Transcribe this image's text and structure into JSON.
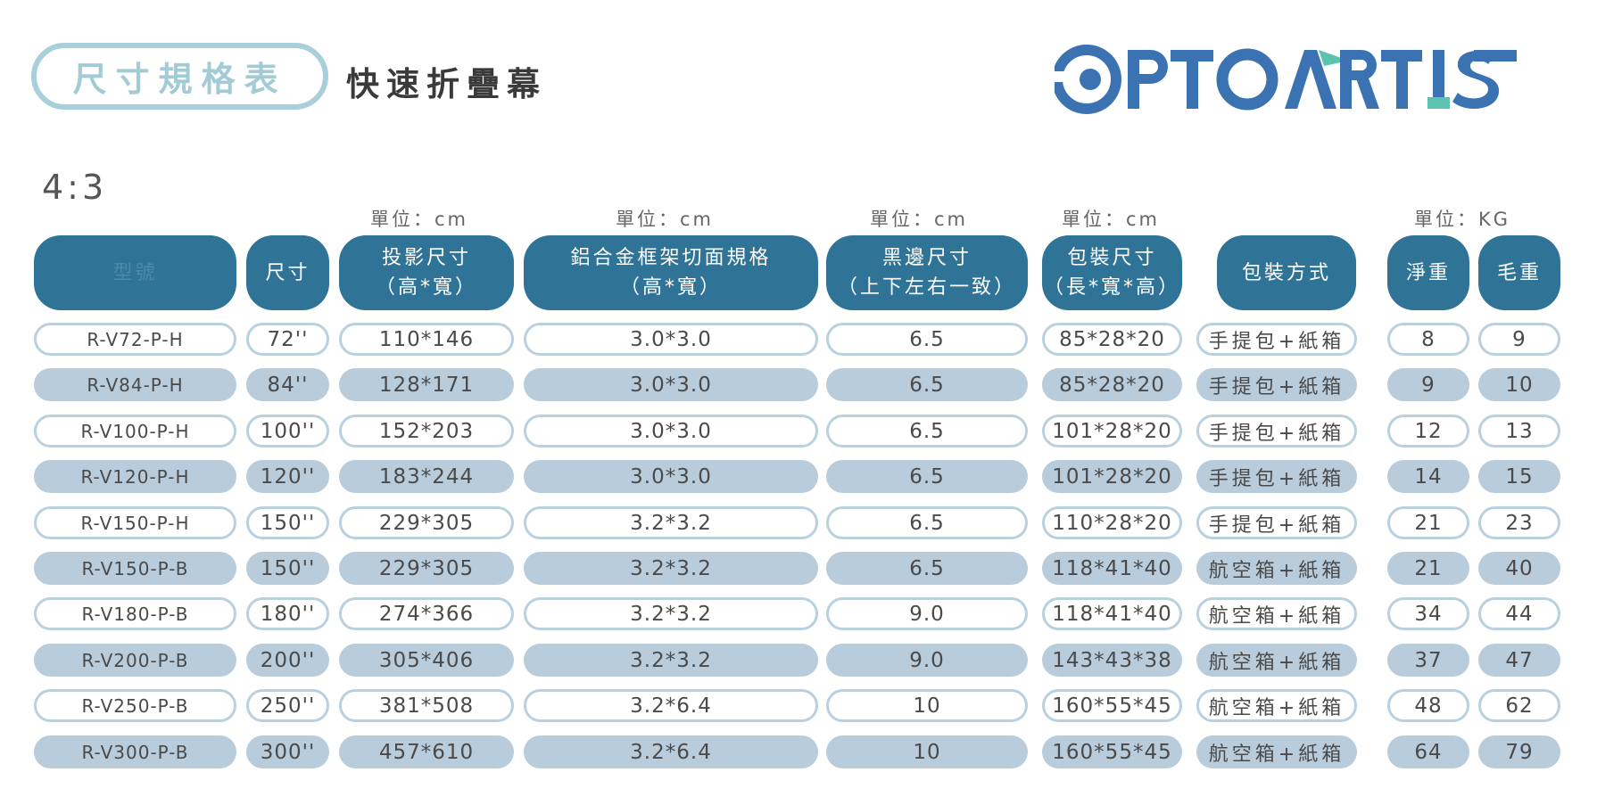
{
  "header": {
    "badge_text": "尺寸規格表",
    "subtitle": "快速折疊幕",
    "brand": "OPTOARTIST",
    "aspect_ratio": "4:3"
  },
  "units": {
    "cm_label": "單位：cm",
    "kg_label": "單位：KG"
  },
  "columns": [
    {
      "line1": "型號",
      "line2": ""
    },
    {
      "line1": "尺寸",
      "line2": ""
    },
    {
      "line1": "投影尺寸",
      "line2": "（高*寬）"
    },
    {
      "line1": "鋁合金框架切面規格",
      "line2": "（高*寬）"
    },
    {
      "line1": "黑邊尺寸",
      "line2": "（上下左右一致）"
    },
    {
      "line1": "包裝尺寸",
      "line2": "（長*寬*高）"
    },
    {
      "line1": "包裝方式",
      "line2": ""
    },
    {
      "line1": "淨重",
      "line2": ""
    },
    {
      "line1": "毛重",
      "line2": ""
    }
  ],
  "rows": [
    [
      "R-V72-P-H",
      "72''",
      "110*146",
      "3.0*3.0",
      "6.5",
      "85*28*20",
      "手提包+紙箱",
      "8",
      "9"
    ],
    [
      "R-V84-P-H",
      "84''",
      "128*171",
      "3.0*3.0",
      "6.5",
      "85*28*20",
      "手提包+紙箱",
      "9",
      "10"
    ],
    [
      "R-V100-P-H",
      "100''",
      "152*203",
      "3.0*3.0",
      "6.5",
      "101*28*20",
      "手提包+紙箱",
      "12",
      "13"
    ],
    [
      "R-V120-P-H",
      "120''",
      "183*244",
      "3.0*3.0",
      "6.5",
      "101*28*20",
      "手提包+紙箱",
      "14",
      "15"
    ],
    [
      "R-V150-P-H",
      "150''",
      "229*305",
      "3.2*3.2",
      "6.5",
      "110*28*20",
      "手提包+紙箱",
      "21",
      "23"
    ],
    [
      "R-V150-P-B",
      "150''",
      "229*305",
      "3.2*3.2",
      "6.5",
      "118*41*40",
      "航空箱+紙箱",
      "21",
      "40"
    ],
    [
      "R-V180-P-B",
      "180''",
      "274*366",
      "3.2*3.2",
      "9.0",
      "118*41*40",
      "航空箱+紙箱",
      "34",
      "44"
    ],
    [
      "R-V200-P-B",
      "200''",
      "305*406",
      "3.2*3.2",
      "9.0",
      "143*43*38",
      "航空箱+紙箱",
      "37",
      "47"
    ],
    [
      "R-V250-P-B",
      "250''",
      "381*508",
      "3.2*6.4",
      "10",
      "160*55*45",
      "航空箱+紙箱",
      "48",
      "62"
    ],
    [
      "R-V300-P-B",
      "300''",
      "457*610",
      "3.2*6.4",
      "10",
      "160*55*45",
      "航空箱+紙箱",
      "64",
      "79"
    ]
  ]
}
